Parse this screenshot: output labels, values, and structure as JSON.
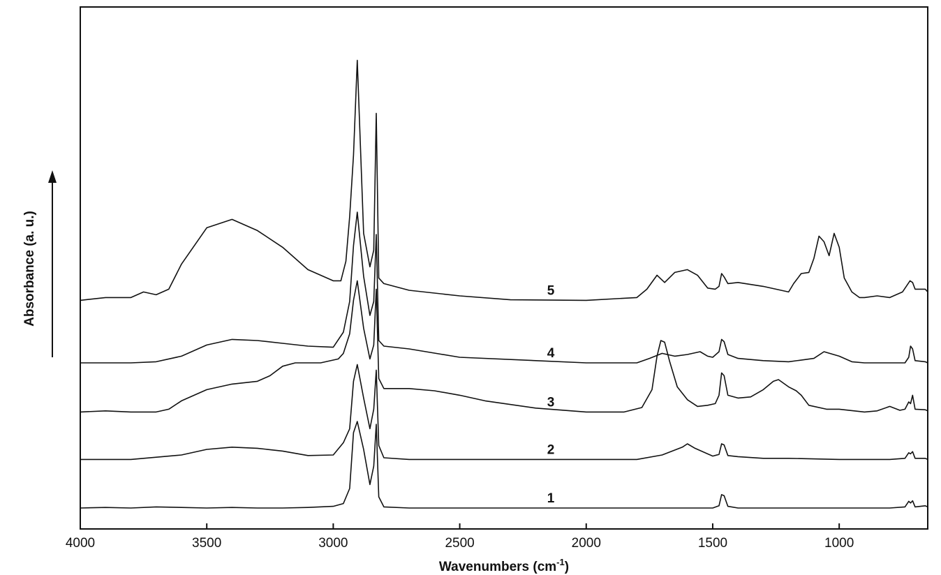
{
  "chart_data": {
    "type": "line",
    "xlabel": "Wavenumbers (cm-1)",
    "xlabel_text": "Wavenumbers (cm",
    "xlabel_sup": "-1",
    "xlabel_close": ")",
    "ylabel": "Absorbance (a. u.)",
    "xlim": [
      4000,
      650
    ],
    "x_reversed": true,
    "x_ticks": [
      4000,
      3500,
      3000,
      2500,
      2000,
      1500,
      1000
    ],
    "x_tick_labels": [
      "4000",
      "3500",
      "3000",
      "2500",
      "2000",
      "1500",
      "1000"
    ],
    "y_ticks": false,
    "grid": false,
    "legend": "none",
    "arrow": "upward",
    "series": [
      {
        "name": "1",
        "offset": 0.0,
        "x": [
          4000,
          3900,
          3800,
          3700,
          3600,
          3500,
          3400,
          3300,
          3200,
          3100,
          3000,
          2960,
          2935,
          2920,
          2905,
          2880,
          2855,
          2840,
          2830,
          2820,
          2800,
          2700,
          2500,
          2000,
          1800,
          1600,
          1500,
          1475,
          1465,
          1455,
          1440,
          1400,
          1300,
          1200,
          1000,
          800,
          740,
          725,
          718,
          710,
          700,
          660,
          650
        ],
        "y": [
          0.0,
          0.01,
          0.0,
          0.02,
          0.01,
          0.0,
          0.01,
          0.0,
          0.0,
          0.01,
          0.03,
          0.08,
          0.35,
          1.35,
          1.55,
          1.05,
          0.42,
          0.75,
          1.5,
          0.2,
          0.02,
          0.0,
          0.0,
          0.0,
          0.0,
          0.0,
          0.0,
          0.04,
          0.24,
          0.22,
          0.03,
          0.0,
          0.0,
          0.0,
          0.0,
          0.0,
          0.02,
          0.12,
          0.09,
          0.13,
          0.02,
          0.04,
          0.02
        ]
      },
      {
        "name": "2",
        "offset": 0.87,
        "x": [
          4000,
          3800,
          3600,
          3500,
          3400,
          3300,
          3200,
          3100,
          3000,
          2960,
          2935,
          2920,
          2905,
          2880,
          2855,
          2840,
          2830,
          2820,
          2800,
          2700,
          2500,
          2000,
          1800,
          1700,
          1620,
          1600,
          1570,
          1500,
          1475,
          1465,
          1455,
          1440,
          1400,
          1300,
          1200,
          1000,
          800,
          740,
          725,
          718,
          710,
          700,
          660,
          650
        ],
        "y": [
          0.0,
          0.0,
          0.08,
          0.18,
          0.22,
          0.2,
          0.15,
          0.07,
          0.08,
          0.3,
          0.55,
          1.4,
          1.7,
          1.1,
          0.55,
          0.9,
          1.6,
          0.25,
          0.03,
          0.0,
          0.0,
          0.0,
          0.0,
          0.08,
          0.22,
          0.28,
          0.2,
          0.06,
          0.09,
          0.28,
          0.26,
          0.07,
          0.05,
          0.02,
          0.02,
          0.0,
          0.0,
          0.02,
          0.12,
          0.1,
          0.14,
          0.02,
          0.02,
          0.0
        ]
      },
      {
        "name": "3",
        "offset": 1.72,
        "x": [
          4000,
          3900,
          3800,
          3700,
          3650,
          3600,
          3500,
          3400,
          3300,
          3250,
          3200,
          3150,
          3050,
          2980,
          2960,
          2935,
          2920,
          2905,
          2880,
          2855,
          2840,
          2830,
          2820,
          2800,
          2700,
          2600,
          2500,
          2400,
          2200,
          2000,
          1850,
          1780,
          1740,
          1720,
          1705,
          1690,
          1670,
          1640,
          1600,
          1560,
          1520,
          1490,
          1475,
          1465,
          1455,
          1440,
          1400,
          1350,
          1300,
          1260,
          1240,
          1200,
          1170,
          1150,
          1120,
          1050,
          1000,
          900,
          850,
          800,
          760,
          740,
          725,
          718,
          710,
          700,
          660,
          650
        ],
        "y": [
          0.0,
          0.02,
          0.0,
          0.0,
          0.05,
          0.2,
          0.4,
          0.5,
          0.55,
          0.65,
          0.82,
          0.88,
          0.88,
          0.95,
          1.05,
          1.4,
          2.0,
          2.35,
          1.5,
          0.95,
          1.2,
          2.2,
          0.6,
          0.42,
          0.42,
          0.38,
          0.3,
          0.2,
          0.07,
          0.0,
          0.0,
          0.08,
          0.4,
          1.0,
          1.28,
          1.25,
          0.9,
          0.45,
          0.22,
          0.1,
          0.12,
          0.15,
          0.3,
          0.7,
          0.65,
          0.3,
          0.25,
          0.27,
          0.4,
          0.55,
          0.58,
          0.45,
          0.38,
          0.3,
          0.12,
          0.05,
          0.05,
          0.0,
          0.02,
          0.1,
          0.03,
          0.05,
          0.18,
          0.15,
          0.3,
          0.05,
          0.04,
          0.02
        ]
      },
      {
        "name": "4",
        "offset": 2.6,
        "x": [
          4000,
          3800,
          3700,
          3600,
          3500,
          3400,
          3300,
          3200,
          3100,
          3000,
          2960,
          2935,
          2920,
          2905,
          2880,
          2855,
          2840,
          2830,
          2820,
          2800,
          2700,
          2500,
          2000,
          1800,
          1750,
          1700,
          1650,
          1600,
          1550,
          1520,
          1500,
          1475,
          1465,
          1455,
          1440,
          1400,
          1300,
          1200,
          1100,
          1060,
          1000,
          950,
          900,
          800,
          740,
          725,
          718,
          710,
          700,
          660,
          650
        ],
        "y": [
          0.0,
          0.0,
          0.02,
          0.12,
          0.32,
          0.42,
          0.4,
          0.35,
          0.3,
          0.28,
          0.55,
          1.1,
          2.1,
          2.7,
          1.55,
          0.85,
          1.1,
          2.3,
          0.4,
          0.3,
          0.25,
          0.1,
          0.0,
          0.0,
          0.08,
          0.17,
          0.12,
          0.15,
          0.2,
          0.12,
          0.1,
          0.2,
          0.42,
          0.38,
          0.15,
          0.08,
          0.04,
          0.02,
          0.08,
          0.2,
          0.12,
          0.02,
          0.0,
          0.0,
          0.0,
          0.1,
          0.3,
          0.25,
          0.04,
          0.02,
          0.0
        ]
      },
      {
        "name": "5",
        "offset": 3.72,
        "x": [
          4000,
          3900,
          3800,
          3750,
          3700,
          3650,
          3600,
          3500,
          3400,
          3300,
          3200,
          3100,
          3000,
          2970,
          2950,
          2935,
          2920,
          2905,
          2880,
          2855,
          2840,
          2830,
          2820,
          2800,
          2700,
          2500,
          2300,
          2000,
          1800,
          1760,
          1720,
          1690,
          1650,
          1600,
          1560,
          1520,
          1490,
          1475,
          1465,
          1455,
          1440,
          1400,
          1300,
          1200,
          1180,
          1150,
          1120,
          1100,
          1080,
          1060,
          1040,
          1020,
          1000,
          980,
          950,
          920,
          900,
          850,
          800,
          750,
          720,
          710,
          700,
          660,
          650
        ],
        "y": [
          0.0,
          0.05,
          0.05,
          0.15,
          0.1,
          0.2,
          0.65,
          1.3,
          1.45,
          1.25,
          0.95,
          0.55,
          0.35,
          0.35,
          0.7,
          1.5,
          2.6,
          4.3,
          1.2,
          0.6,
          0.9,
          3.35,
          0.4,
          0.3,
          0.18,
          0.08,
          0.01,
          0.0,
          0.05,
          0.2,
          0.45,
          0.32,
          0.5,
          0.55,
          0.45,
          0.22,
          0.2,
          0.25,
          0.48,
          0.42,
          0.3,
          0.32,
          0.25,
          0.15,
          0.3,
          0.48,
          0.5,
          0.75,
          1.15,
          1.05,
          0.8,
          1.2,
          0.95,
          0.4,
          0.15,
          0.05,
          0.05,
          0.08,
          0.05,
          0.15,
          0.35,
          0.32,
          0.2,
          0.2,
          0.15
        ]
      }
    ]
  }
}
